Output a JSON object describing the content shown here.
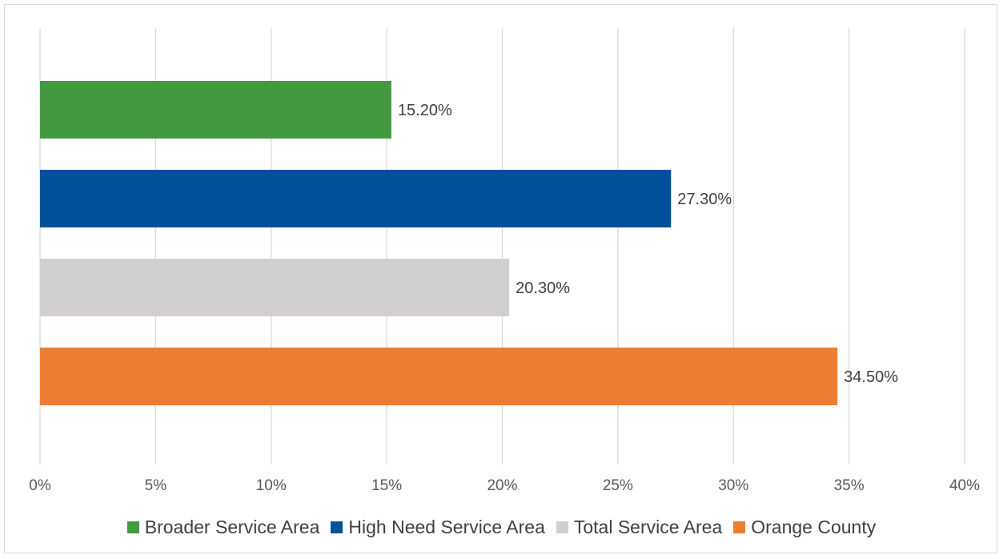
{
  "chart_data": {
    "type": "bar",
    "orientation": "horizontal",
    "title": "",
    "xlabel": "",
    "ylabel": "",
    "xlim": [
      0,
      40
    ],
    "x_ticks": [
      "0%",
      "5%",
      "10%",
      "15%",
      "20%",
      "25%",
      "30%",
      "35%",
      "40%"
    ],
    "grid": "vertical",
    "legend_placement": "bottom",
    "series": [
      {
        "name": "Broader Service Area",
        "value": 15.2,
        "label": "15.20%",
        "color": "#43993f"
      },
      {
        "name": "High Need Service Area",
        "value": 27.3,
        "label": "27.30%",
        "color": "#01519a"
      },
      {
        "name": "Total Service Area",
        "value": 20.3,
        "label": "20.30%",
        "color": "#d0cece"
      },
      {
        "name": "Orange County",
        "value": 34.5,
        "label": "34.50%",
        "color": "#ed7d31"
      }
    ]
  }
}
